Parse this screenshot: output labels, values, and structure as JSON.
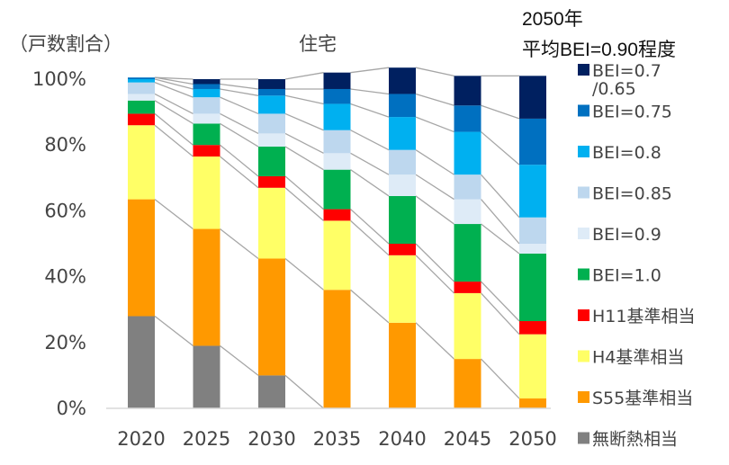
{
  "chart_data": {
    "type": "bar",
    "stacked": true,
    "title": "住宅",
    "ylabel": "（戸数割合）",
    "annotation_lines": [
      "2050年",
      "平均BEI=0.90程度"
    ],
    "categories": [
      "2020",
      "2025",
      "2030",
      "2035",
      "2040",
      "2045",
      "2050"
    ],
    "ylim": [
      0,
      100
    ],
    "yticks": [
      "0%",
      "20%",
      "40%",
      "60%",
      "80%",
      "100%"
    ],
    "grid": false,
    "legend_position": "right",
    "series": [
      {
        "name": "無断熱相当",
        "color": "#808080",
        "values": [
          28,
          19,
          10,
          0,
          0,
          0,
          0
        ]
      },
      {
        "name": "S55基準相当",
        "color": "#ff9900",
        "values": [
          35.5,
          35.5,
          35.5,
          36,
          26,
          15,
          3
        ]
      },
      {
        "name": "H4基準相当",
        "color": "#ffff66",
        "values": [
          22.5,
          22,
          21.5,
          21,
          20.5,
          20,
          19.5
        ]
      },
      {
        "name": "H11基準相当",
        "color": "#ff0000",
        "values": [
          3.5,
          3.5,
          3.5,
          3.5,
          3.5,
          3.5,
          4
        ]
      },
      {
        "name": "BEI=1.0",
        "color": "#00b050",
        "values": [
          4,
          6.5,
          9,
          12,
          14.5,
          17.5,
          20.5
        ]
      },
      {
        "name": "BEI=0.9",
        "color": "#deebf7",
        "values": [
          2,
          3,
          4,
          5,
          6.5,
          7.5,
          3
        ]
      },
      {
        "name": "BEI=0.85",
        "color": "#bdd7ee",
        "values": [
          3.5,
          5,
          6,
          7,
          7.5,
          7.5,
          8
        ]
      },
      {
        "name": "BEI=0.8",
        "color": "#00b0f0",
        "values": [
          1,
          2.5,
          5.5,
          8,
          10,
          13,
          16
        ]
      },
      {
        "name": "BEI=0.75",
        "color": "#0070c0",
        "values": [
          0.5,
          1.5,
          2,
          4.5,
          7,
          8,
          14
        ]
      },
      {
        "name": "BEI=0.7\n/0.65",
        "color": "#002060",
        "values": [
          0,
          1.5,
          3,
          5,
          8,
          9,
          13
        ]
      }
    ]
  }
}
